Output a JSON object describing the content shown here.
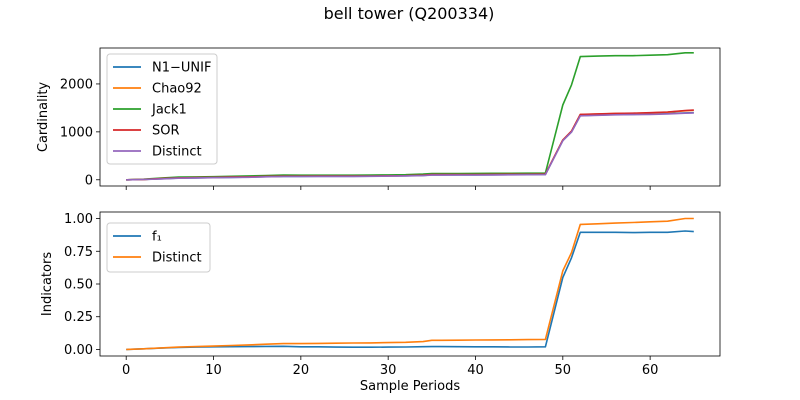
{
  "title": "bell tower (Q200334)",
  "colors": {
    "blue": "#1f77b4",
    "orange": "#ff7f0e",
    "green": "#2ca02c",
    "red": "#d62728",
    "purple": "#9467bd"
  },
  "chart_data": [
    {
      "type": "line",
      "ylabel": "Cardinality",
      "xlabel": "",
      "xlim": [
        -3,
        68
      ],
      "ylim": [
        -130,
        2750
      ],
      "xticks": [
        0,
        10,
        20,
        30,
        40,
        50,
        60
      ],
      "xtick_labels_visible": false,
      "yticks": [
        0,
        1000,
        2000
      ],
      "ytick_labels": [
        "0",
        "1000",
        "2000"
      ],
      "legend_position": "upper-left",
      "x": [
        0,
        2,
        4,
        6,
        8,
        10,
        12,
        14,
        16,
        18,
        20,
        22,
        24,
        26,
        28,
        30,
        32,
        34,
        35,
        36,
        38,
        40,
        42,
        44,
        46,
        48,
        50,
        51,
        52,
        54,
        56,
        58,
        60,
        62,
        64,
        65
      ],
      "series": [
        {
          "name": "N1−UNIF",
          "color": "#1f77b4",
          "values": [
            0,
            5,
            20,
            35,
            40,
            45,
            50,
            55,
            65,
            70,
            70,
            72,
            73,
            73,
            75,
            78,
            82,
            90,
            100,
            100,
            101,
            102,
            104,
            106,
            107,
            110,
            820,
            1000,
            1340,
            1350,
            1360,
            1365,
            1370,
            1380,
            1395,
            1400
          ]
        },
        {
          "name": "Chao92",
          "color": "#ff7f0e",
          "values": [
            0,
            8,
            25,
            40,
            45,
            50,
            55,
            60,
            70,
            75,
            75,
            76,
            77,
            77,
            79,
            82,
            86,
            95,
            108,
            108,
            109,
            110,
            112,
            114,
            115,
            118,
            830,
            1010,
            1360,
            1370,
            1380,
            1385,
            1395,
            1410,
            1440,
            1450
          ]
        },
        {
          "name": "Jack1",
          "color": "#2ca02c",
          "values": [
            0,
            12,
            35,
            55,
            60,
            65,
            72,
            80,
            90,
            100,
            95,
            95,
            96,
            96,
            98,
            102,
            106,
            118,
            130,
            130,
            131,
            132,
            134,
            136,
            137,
            140,
            1560,
            1980,
            2570,
            2580,
            2590,
            2590,
            2600,
            2610,
            2650,
            2650
          ]
        },
        {
          "name": "SOR",
          "color": "#d62728",
          "values": [
            0,
            8,
            24,
            40,
            45,
            50,
            55,
            60,
            70,
            75,
            75,
            76,
            77,
            77,
            79,
            82,
            86,
            95,
            108,
            108,
            109,
            110,
            112,
            114,
            115,
            118,
            830,
            1015,
            1365,
            1375,
            1385,
            1390,
            1400,
            1415,
            1445,
            1455
          ]
        },
        {
          "name": "Distinct",
          "color": "#9467bd",
          "values": [
            0,
            5,
            18,
            33,
            38,
            43,
            48,
            52,
            62,
            68,
            68,
            70,
            71,
            71,
            73,
            76,
            80,
            88,
            98,
            98,
            99,
            100,
            102,
            104,
            105,
            108,
            815,
            995,
            1335,
            1345,
            1355,
            1360,
            1365,
            1375,
            1390,
            1395
          ]
        }
      ]
    },
    {
      "type": "line",
      "ylabel": "Indicators",
      "xlabel": "Sample Periods",
      "xlim": [
        -3,
        68
      ],
      "ylim": [
        -0.05,
        1.05
      ],
      "xticks": [
        0,
        10,
        20,
        30,
        40,
        50,
        60
      ],
      "xtick_labels": [
        "0",
        "10",
        "20",
        "30",
        "40",
        "50",
        "60"
      ],
      "yticks": [
        0.0,
        0.25,
        0.5,
        0.75,
        1.0
      ],
      "ytick_labels": [
        "0.00",
        "0.25",
        "0.50",
        "0.75",
        "1.00"
      ],
      "legend_position": "upper-left",
      "x": [
        0,
        2,
        4,
        6,
        8,
        10,
        12,
        14,
        16,
        18,
        20,
        22,
        24,
        26,
        28,
        30,
        32,
        34,
        35,
        36,
        38,
        40,
        42,
        44,
        46,
        48,
        50,
        51,
        52,
        54,
        56,
        58,
        60,
        62,
        64,
        65
      ],
      "series": [
        {
          "name": "f₁",
          "color": "#1f77b4",
          "values": [
            0.0,
            0.005,
            0.01,
            0.015,
            0.018,
            0.02,
            0.021,
            0.022,
            0.023,
            0.024,
            0.02,
            0.02,
            0.018,
            0.017,
            0.017,
            0.018,
            0.019,
            0.021,
            0.022,
            0.022,
            0.021,
            0.02,
            0.02,
            0.019,
            0.019,
            0.02,
            0.55,
            0.7,
            0.895,
            0.895,
            0.895,
            0.893,
            0.895,
            0.895,
            0.905,
            0.9
          ]
        },
        {
          "name": "Distinct",
          "color": "#ff7f0e",
          "values": [
            0.0,
            0.005,
            0.012,
            0.018,
            0.022,
            0.026,
            0.03,
            0.035,
            0.04,
            0.045,
            0.045,
            0.046,
            0.048,
            0.049,
            0.05,
            0.052,
            0.055,
            0.06,
            0.07,
            0.07,
            0.071,
            0.072,
            0.073,
            0.074,
            0.075,
            0.077,
            0.6,
            0.74,
            0.955,
            0.96,
            0.965,
            0.97,
            0.975,
            0.98,
            1.0,
            1.0
          ]
        }
      ]
    }
  ]
}
